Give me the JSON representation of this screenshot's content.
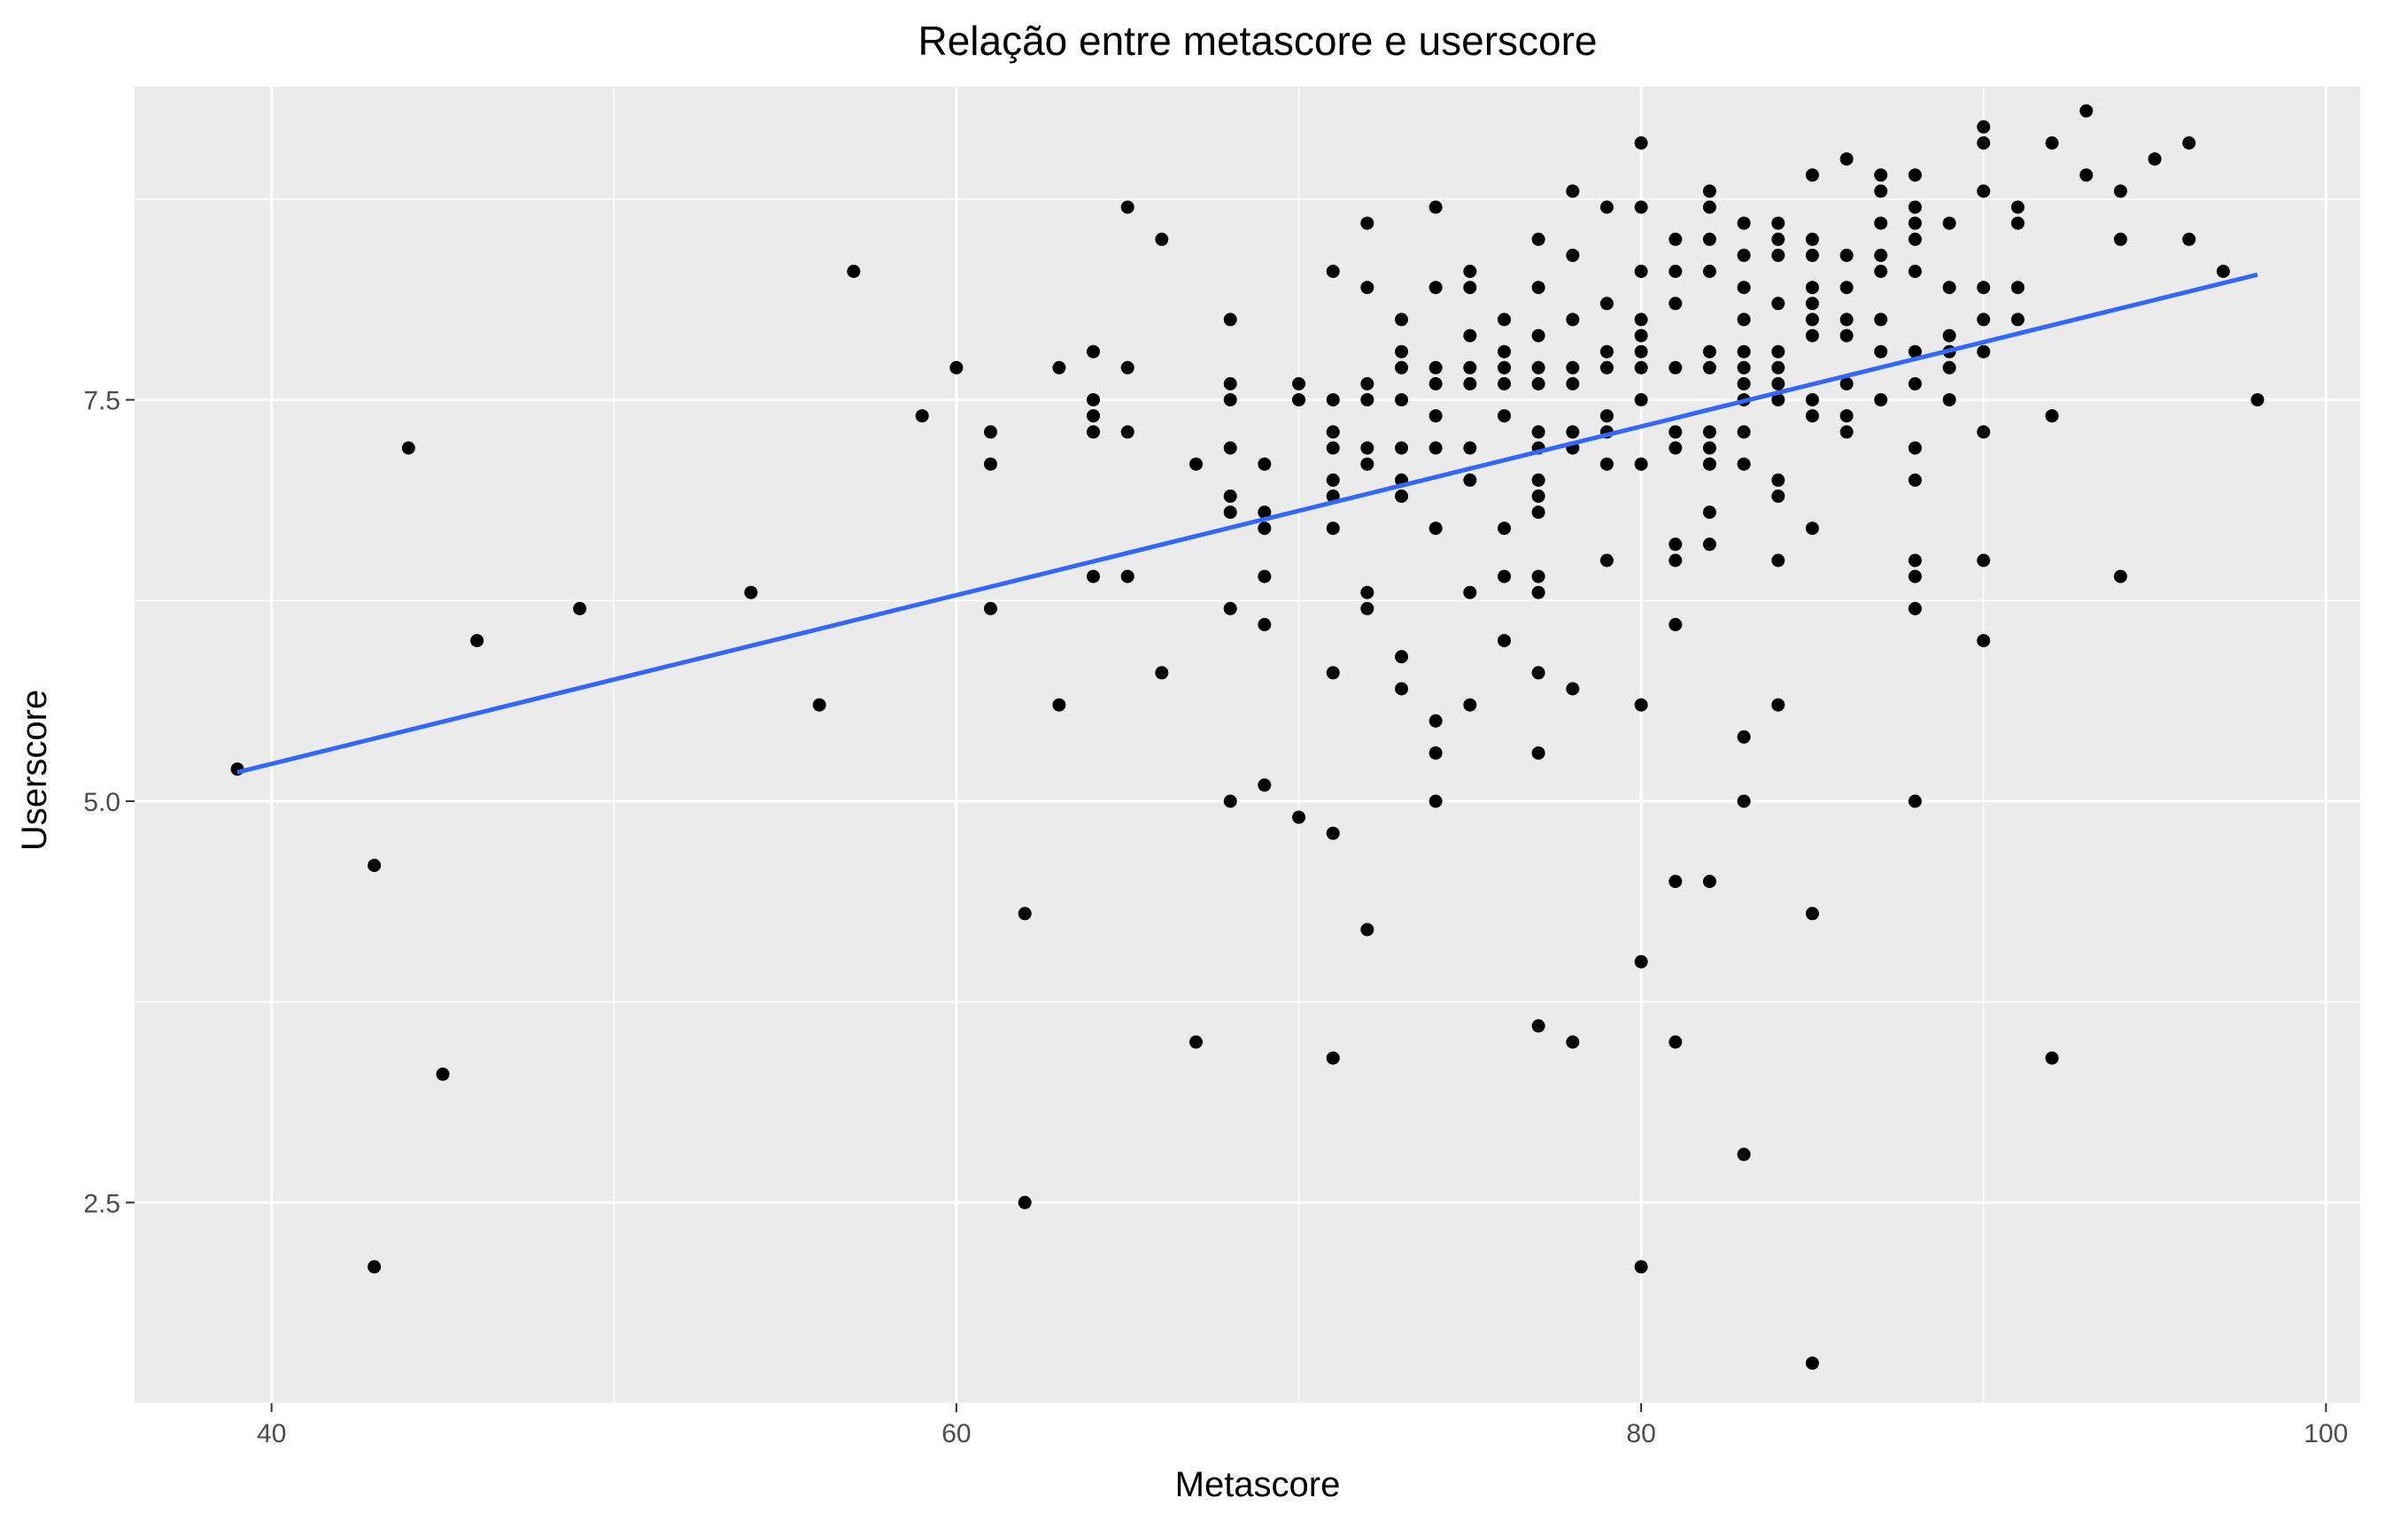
{
  "chart_data": {
    "type": "scatter",
    "title": "Relação entre metascore e userscore",
    "xlabel": "Metascore",
    "ylabel": "Userscore",
    "xlim": [
      36,
      101
    ],
    "ylim": [
      1.25,
      9.45
    ],
    "x_ticks": [
      40,
      60,
      80,
      100
    ],
    "x_tick_labels": [
      "40",
      "60",
      "80",
      "100"
    ],
    "y_ticks": [
      2.5,
      5.0,
      7.5
    ],
    "y_tick_labels": [
      "2.5",
      "5.0",
      "7.5"
    ],
    "grid": true,
    "legend": "none",
    "colors": {
      "panel": "#ebebeb",
      "grid": "#ffffff",
      "points": "#000000",
      "trend": "#3366ff"
    },
    "trend_line": {
      "x": [
        39,
        98
      ],
      "y": [
        5.18,
        8.28
      ]
    },
    "points": [
      [
        39,
        5.2
      ],
      [
        43,
        4.6
      ],
      [
        43,
        2.1
      ],
      [
        44,
        7.2
      ],
      [
        45,
        3.3
      ],
      [
        46,
        6.0
      ],
      [
        49,
        6.2
      ],
      [
        54,
        6.3
      ],
      [
        56,
        5.6
      ],
      [
        57,
        8.3
      ],
      [
        59,
        7.4
      ],
      [
        60,
        7.7
      ],
      [
        61,
        7.3
      ],
      [
        61,
        7.1
      ],
      [
        61,
        6.2
      ],
      [
        62,
        4.3
      ],
      [
        62,
        2.5
      ],
      [
        63,
        7.7
      ],
      [
        63,
        5.6
      ],
      [
        64,
        7.8
      ],
      [
        64,
        7.5
      ],
      [
        64,
        7.4
      ],
      [
        64,
        7.3
      ],
      [
        64,
        6.4
      ],
      [
        65,
        8.7
      ],
      [
        65,
        7.7
      ],
      [
        65,
        7.3
      ],
      [
        65,
        6.4
      ],
      [
        66,
        8.5
      ],
      [
        66,
        5.8
      ],
      [
        67,
        7.1
      ],
      [
        67,
        3.5
      ],
      [
        68,
        8.0
      ],
      [
        68,
        7.6
      ],
      [
        68,
        7.5
      ],
      [
        68,
        7.2
      ],
      [
        68,
        6.9
      ],
      [
        68,
        6.8
      ],
      [
        68,
        6.2
      ],
      [
        68,
        5.0
      ],
      [
        69,
        7.1
      ],
      [
        69,
        6.8
      ],
      [
        69,
        6.7
      ],
      [
        69,
        6.4
      ],
      [
        69,
        6.1
      ],
      [
        69,
        5.1
      ],
      [
        70,
        7.6
      ],
      [
        70,
        7.5
      ],
      [
        70,
        4.9
      ],
      [
        71,
        8.3
      ],
      [
        71,
        7.5
      ],
      [
        71,
        7.3
      ],
      [
        71,
        7.2
      ],
      [
        71,
        7.0
      ],
      [
        71,
        6.9
      ],
      [
        71,
        6.7
      ],
      [
        71,
        5.8
      ],
      [
        71,
        4.8
      ],
      [
        71,
        3.4
      ],
      [
        72,
        8.6
      ],
      [
        72,
        8.2
      ],
      [
        72,
        7.6
      ],
      [
        72,
        7.5
      ],
      [
        72,
        7.2
      ],
      [
        72,
        7.1
      ],
      [
        72,
        6.3
      ],
      [
        72,
        6.2
      ],
      [
        72,
        4.2
      ],
      [
        73,
        8.0
      ],
      [
        73,
        7.8
      ],
      [
        73,
        7.7
      ],
      [
        73,
        7.5
      ],
      [
        73,
        7.2
      ],
      [
        73,
        7.0
      ],
      [
        73,
        6.9
      ],
      [
        73,
        5.9
      ],
      [
        73,
        5.7
      ],
      [
        74,
        8.7
      ],
      [
        74,
        8.2
      ],
      [
        74,
        7.7
      ],
      [
        74,
        7.6
      ],
      [
        74,
        7.4
      ],
      [
        74,
        7.2
      ],
      [
        74,
        6.7
      ],
      [
        74,
        5.5
      ],
      [
        74,
        5.3
      ],
      [
        74,
        5.0
      ],
      [
        75,
        8.3
      ],
      [
        75,
        8.2
      ],
      [
        75,
        7.9
      ],
      [
        75,
        7.7
      ],
      [
        75,
        7.6
      ],
      [
        75,
        7.2
      ],
      [
        75,
        7.0
      ],
      [
        75,
        6.3
      ],
      [
        75,
        5.6
      ],
      [
        76,
        8.0
      ],
      [
        76,
        7.8
      ],
      [
        76,
        7.7
      ],
      [
        76,
        7.6
      ],
      [
        76,
        7.4
      ],
      [
        76,
        6.7
      ],
      [
        76,
        6.4
      ],
      [
        76,
        6.0
      ],
      [
        77,
        8.5
      ],
      [
        77,
        8.2
      ],
      [
        77,
        7.9
      ],
      [
        77,
        7.7
      ],
      [
        77,
        7.6
      ],
      [
        77,
        7.3
      ],
      [
        77,
        7.2
      ],
      [
        77,
        7.0
      ],
      [
        77,
        6.9
      ],
      [
        77,
        6.8
      ],
      [
        77,
        6.4
      ],
      [
        77,
        6.3
      ],
      [
        77,
        5.8
      ],
      [
        77,
        5.3
      ],
      [
        77,
        3.6
      ],
      [
        78,
        8.8
      ],
      [
        78,
        8.4
      ],
      [
        78,
        8.0
      ],
      [
        78,
        7.7
      ],
      [
        78,
        7.6
      ],
      [
        78,
        7.3
      ],
      [
        78,
        7.2
      ],
      [
        78,
        5.7
      ],
      [
        78,
        3.5
      ],
      [
        79,
        8.7
      ],
      [
        79,
        8.1
      ],
      [
        79,
        7.8
      ],
      [
        79,
        7.7
      ],
      [
        79,
        7.4
      ],
      [
        79,
        7.3
      ],
      [
        79,
        7.1
      ],
      [
        79,
        6.5
      ],
      [
        80,
        9.1
      ],
      [
        80,
        8.7
      ],
      [
        80,
        8.3
      ],
      [
        80,
        8.0
      ],
      [
        80,
        7.9
      ],
      [
        80,
        7.8
      ],
      [
        80,
        7.7
      ],
      [
        80,
        7.5
      ],
      [
        80,
        7.1
      ],
      [
        80,
        5.6
      ],
      [
        80,
        4.0
      ],
      [
        80,
        2.1
      ],
      [
        81,
        8.5
      ],
      [
        81,
        8.3
      ],
      [
        81,
        8.1
      ],
      [
        81,
        7.7
      ],
      [
        81,
        7.3
      ],
      [
        81,
        7.2
      ],
      [
        81,
        6.6
      ],
      [
        81,
        6.5
      ],
      [
        81,
        6.1
      ],
      [
        81,
        4.5
      ],
      [
        81,
        3.5
      ],
      [
        82,
        8.8
      ],
      [
        82,
        8.7
      ],
      [
        82,
        8.5
      ],
      [
        82,
        8.3
      ],
      [
        82,
        7.8
      ],
      [
        82,
        7.7
      ],
      [
        82,
        7.3
      ],
      [
        82,
        7.2
      ],
      [
        82,
        7.1
      ],
      [
        82,
        6.8
      ],
      [
        82,
        6.6
      ],
      [
        82,
        4.5
      ],
      [
        83,
        8.6
      ],
      [
        83,
        8.4
      ],
      [
        83,
        8.2
      ],
      [
        83,
        8.0
      ],
      [
        83,
        7.8
      ],
      [
        83,
        7.7
      ],
      [
        83,
        7.6
      ],
      [
        83,
        7.5
      ],
      [
        83,
        7.3
      ],
      [
        83,
        7.1
      ],
      [
        83,
        5.4
      ],
      [
        83,
        5.0
      ],
      [
        83,
        2.8
      ],
      [
        84,
        8.6
      ],
      [
        84,
        8.5
      ],
      [
        84,
        8.4
      ],
      [
        84,
        8.1
      ],
      [
        84,
        7.8
      ],
      [
        84,
        7.7
      ],
      [
        84,
        7.6
      ],
      [
        84,
        7.5
      ],
      [
        84,
        7.0
      ],
      [
        84,
        6.9
      ],
      [
        84,
        6.5
      ],
      [
        84,
        5.6
      ],
      [
        85,
        8.9
      ],
      [
        85,
        8.5
      ],
      [
        85,
        8.4
      ],
      [
        85,
        8.2
      ],
      [
        85,
        8.1
      ],
      [
        85,
        8.0
      ],
      [
        85,
        7.9
      ],
      [
        85,
        7.5
      ],
      [
        85,
        7.4
      ],
      [
        85,
        6.7
      ],
      [
        85,
        4.3
      ],
      [
        85,
        1.5
      ],
      [
        86,
        9.0
      ],
      [
        86,
        8.4
      ],
      [
        86,
        8.2
      ],
      [
        86,
        8.0
      ],
      [
        86,
        7.9
      ],
      [
        86,
        7.6
      ],
      [
        86,
        7.4
      ],
      [
        86,
        7.3
      ],
      [
        87,
        8.9
      ],
      [
        87,
        8.8
      ],
      [
        87,
        8.6
      ],
      [
        87,
        8.4
      ],
      [
        87,
        8.3
      ],
      [
        87,
        8.0
      ],
      [
        87,
        7.8
      ],
      [
        87,
        7.5
      ],
      [
        88,
        8.9
      ],
      [
        88,
        8.7
      ],
      [
        88,
        8.6
      ],
      [
        88,
        8.5
      ],
      [
        88,
        8.3
      ],
      [
        88,
        7.8
      ],
      [
        88,
        7.6
      ],
      [
        88,
        7.2
      ],
      [
        88,
        7.0
      ],
      [
        88,
        6.5
      ],
      [
        88,
        6.4
      ],
      [
        88,
        6.2
      ],
      [
        88,
        5.0
      ],
      [
        89,
        8.6
      ],
      [
        89,
        8.2
      ],
      [
        89,
        7.9
      ],
      [
        89,
        7.8
      ],
      [
        89,
        7.7
      ],
      [
        89,
        7.5
      ],
      [
        90,
        9.2
      ],
      [
        90,
        9.1
      ],
      [
        90,
        8.8
      ],
      [
        90,
        8.2
      ],
      [
        90,
        8.0
      ],
      [
        90,
        7.8
      ],
      [
        90,
        7.3
      ],
      [
        90,
        6.5
      ],
      [
        90,
        6.0
      ],
      [
        91,
        8.7
      ],
      [
        91,
        8.6
      ],
      [
        91,
        8.2
      ],
      [
        91,
        8.0
      ],
      [
        92,
        9.1
      ],
      [
        92,
        7.4
      ],
      [
        92,
        3.4
      ],
      [
        93,
        9.3
      ],
      [
        93,
        8.9
      ],
      [
        94,
        8.8
      ],
      [
        94,
        8.5
      ],
      [
        94,
        6.4
      ],
      [
        95,
        9.0
      ],
      [
        96,
        9.1
      ],
      [
        96,
        8.5
      ],
      [
        97,
        8.3
      ],
      [
        98,
        7.5
      ]
    ]
  }
}
